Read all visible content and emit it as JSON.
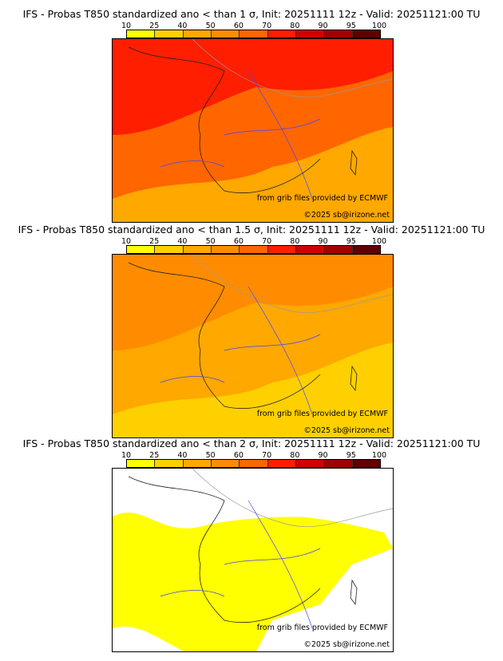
{
  "colorbar": {
    "ticks": [
      "10",
      "25",
      "40",
      "50",
      "60",
      "70",
      "80",
      "90",
      "95",
      "100"
    ],
    "colors": [
      "#ffff00",
      "#ffd000",
      "#ffa800",
      "#ff8c00",
      "#ff6600",
      "#ff1e00",
      "#d00000",
      "#a00000",
      "#600000"
    ]
  },
  "panels": [
    {
      "title": "IFS - Probas T850  standardized ano < than 1 σ, Init: 20251111 12z - Valid: 20251121:00 TU",
      "base": "#ff6600",
      "north": "#ff1e00",
      "south": "#ffa800"
    },
    {
      "title": "IFS - Probas T850  standardized ano < than 1.5 σ, Init: 20251111 12z - Valid: 20251121:00 TU",
      "base": "#ffa800",
      "north": "#ff8c00",
      "south": "#ffd000"
    },
    {
      "title": "IFS - Probas T850  standardized ano < than 2 σ, Init: 20251111 12z - Valid: 20251121:00 TU",
      "base": "#ffffff",
      "north": "#ffffff",
      "south": "#ffff00"
    }
  ],
  "credits": {
    "source": "from grib files provided by ECMWF",
    "copyright": "©2025 sb@irizone.net"
  }
}
